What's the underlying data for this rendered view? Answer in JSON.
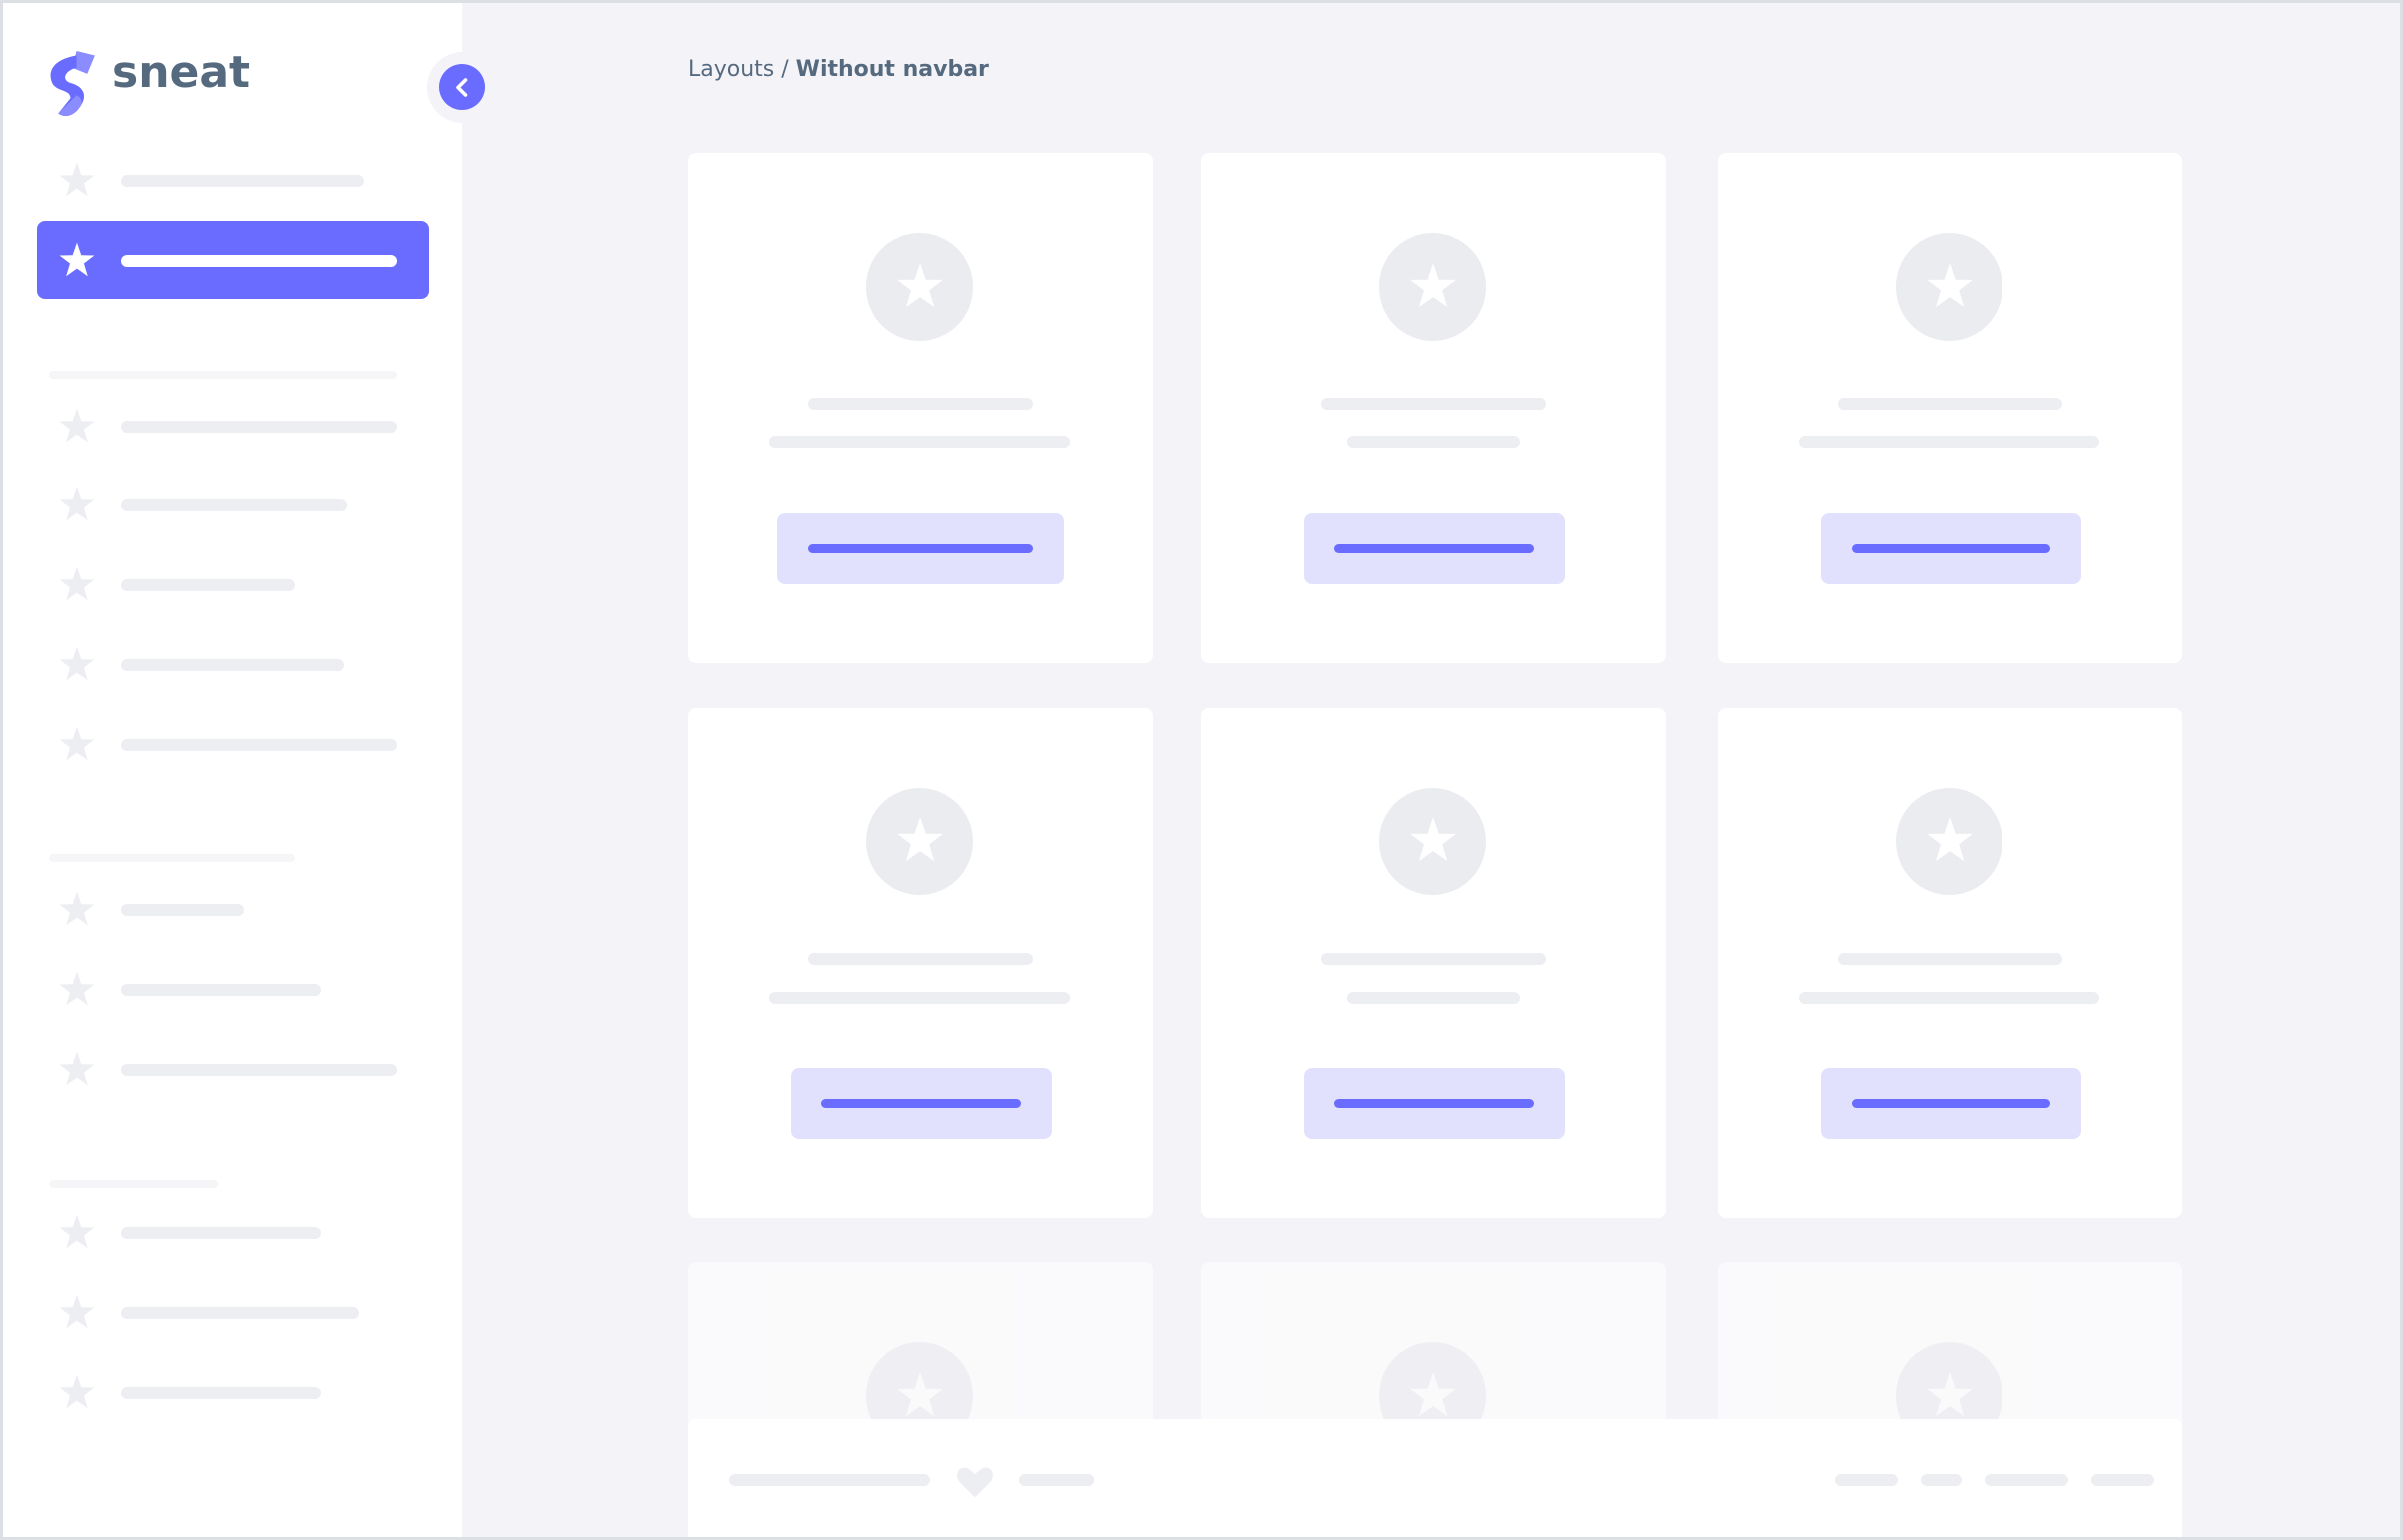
{
  "brand": {
    "name": "sneat",
    "logo_color": "#696cff"
  },
  "breadcrumb": {
    "parent": "Layouts",
    "separator": "/",
    "current": "Without navbar"
  },
  "sidebar": {
    "toggle_icon": "chevron-left-icon",
    "active_index": 1,
    "accent": "#696cff"
  },
  "colors": {
    "primary": "#696cff",
    "primary_light": "#e1e1fe",
    "background": "#f4f4f8",
    "placeholder": "#edeef2",
    "text": "#566a7f"
  }
}
